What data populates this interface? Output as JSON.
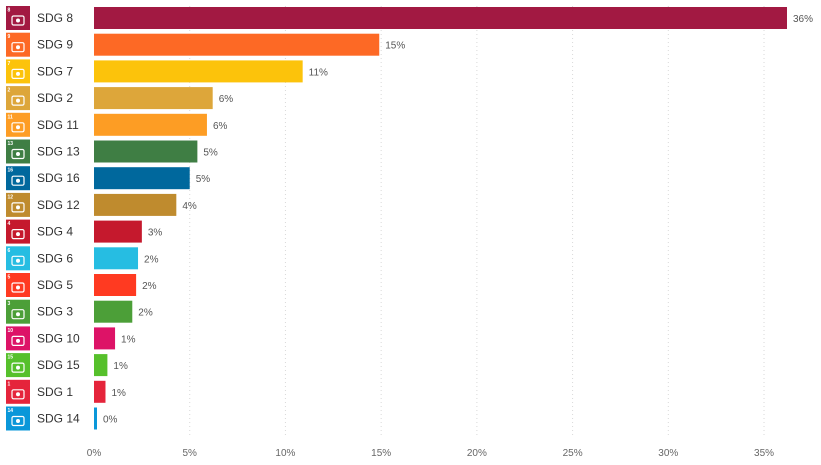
{
  "chart_data": {
    "type": "bar",
    "orientation": "horizontal",
    "categories": [
      "SDG 8",
      "SDG 9",
      "SDG 7",
      "SDG 2",
      "SDG 11",
      "SDG 13",
      "SDG 16",
      "SDG 12",
      "SDG 4",
      "SDG 6",
      "SDG 5",
      "SDG 3",
      "SDG 10",
      "SDG 15",
      "SDG 1",
      "SDG 14"
    ],
    "values": [
      36,
      15,
      11,
      6,
      6,
      5,
      5,
      4,
      3,
      2,
      2,
      2,
      1,
      1,
      1,
      0
    ],
    "value_labels": [
      "36%",
      "15%",
      "11%",
      "6%",
      "6%",
      "5%",
      "5%",
      "4%",
      "3%",
      "2%",
      "2%",
      "2%",
      "1%",
      "1%",
      "1%",
      "0%"
    ],
    "bar_values": [
      36.2,
      14.9,
      10.9,
      6.2,
      5.9,
      5.4,
      5.0,
      4.3,
      2.5,
      2.3,
      2.2,
      2.0,
      1.1,
      0.7,
      0.6,
      0.15
    ],
    "colors": [
      "#a21942",
      "#fd6925",
      "#fcc30b",
      "#dda63a",
      "#fd9d24",
      "#3f7e44",
      "#00689d",
      "#bf8b2e",
      "#c5192d",
      "#26bde2",
      "#ff3a21",
      "#4c9f38",
      "#dd1367",
      "#56c02b",
      "#e5243b",
      "#0a97d9"
    ],
    "icons": [
      "sdg-8-decent-work-icon",
      "sdg-9-industry-icon",
      "sdg-7-energy-icon",
      "sdg-2-zero-hunger-icon",
      "sdg-11-cities-icon",
      "sdg-13-climate-icon",
      "sdg-16-peace-icon",
      "sdg-12-consumption-icon",
      "sdg-4-education-icon",
      "sdg-6-water-icon",
      "sdg-5-gender-icon",
      "sdg-3-health-icon",
      "sdg-10-inequalities-icon",
      "sdg-15-life-on-land-icon",
      "sdg-1-no-poverty-icon",
      "sdg-14-life-below-water-icon"
    ],
    "icon_numbers": [
      "8",
      "9",
      "7",
      "2",
      "11",
      "13",
      "16",
      "12",
      "4",
      "6",
      "5",
      "3",
      "10",
      "15",
      "1",
      "14"
    ],
    "x_ticks": [
      0,
      5,
      10,
      15,
      20,
      25,
      30,
      35
    ],
    "x_tick_labels": [
      "0%",
      "5%",
      "10%",
      "15%",
      "20%",
      "25%",
      "30%",
      "35%"
    ],
    "xlim": [
      0,
      36.2
    ],
    "grid": "vertical-dotted",
    "title": "",
    "xlabel": "",
    "ylabel": ""
  }
}
